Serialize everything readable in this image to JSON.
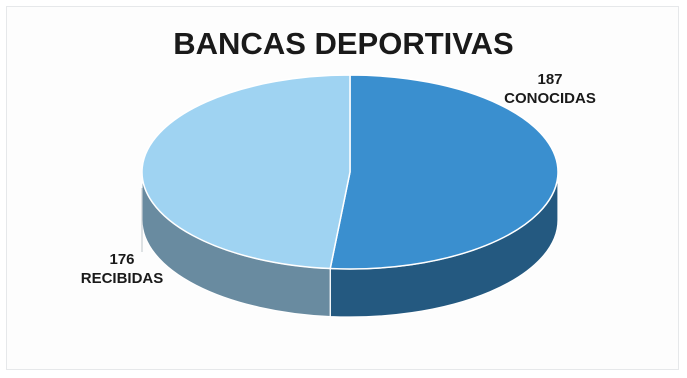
{
  "chart_data": {
    "type": "pie",
    "title": "BANCAS DEPORTIVAS",
    "categories": [
      "CONOCIDAS",
      "RECIBIDAS"
    ],
    "values": [
      187,
      176
    ],
    "colors": [
      "#3a8fcf",
      "#9fd3f2"
    ],
    "three_d": true,
    "legend": "none",
    "labels": [
      {
        "value": "187",
        "category": "CONOCIDAS"
      },
      {
        "value": "176",
        "category": "RECIBIDAS"
      }
    ]
  }
}
